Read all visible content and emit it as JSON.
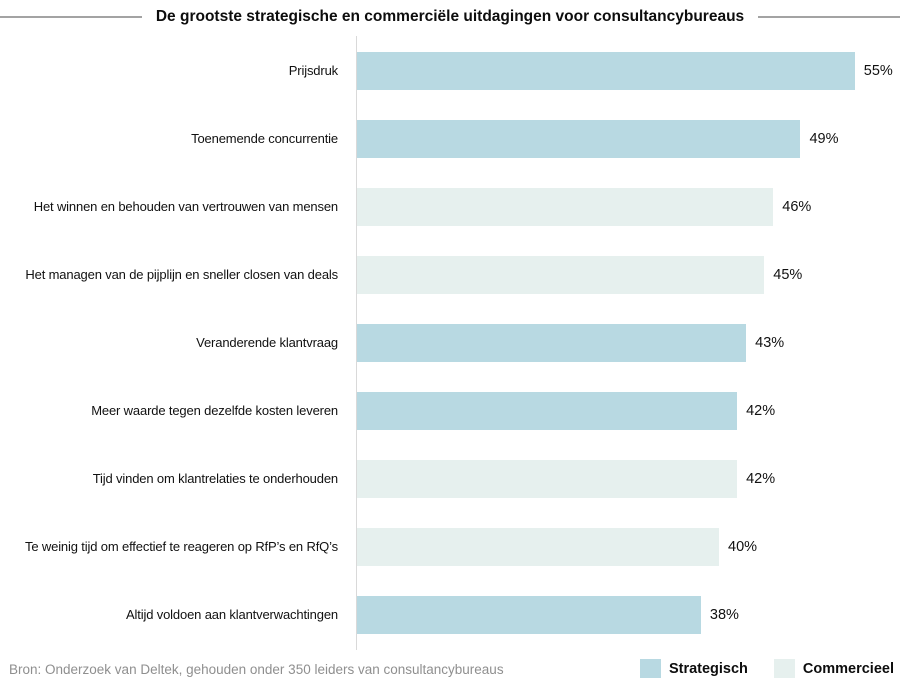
{
  "title": "De grootste strategische en commerciële uitdagingen voor consultancybureaus",
  "source": "Bron: Onderzoek van Deltek, gehouden onder 350 leiders van consultancybureaus",
  "legend": {
    "items": [
      {
        "label": "Strategisch",
        "color": "#b8d9e2"
      },
      {
        "label": "Commercieel",
        "color": "#e6f0ee"
      }
    ]
  },
  "colors": {
    "strategisch": "#b8d9e2",
    "commercieel": "#e6f0ee",
    "axis_line": "#d9d9d9",
    "title_rule": "#a3a3a3",
    "source_text": "#8f8f8f",
    "text": "#111111",
    "background": "#ffffff"
  },
  "chart_data": {
    "type": "bar",
    "orientation": "horizontal",
    "title": "De grootste strategische en commerciële uitdagingen voor consultancybureaus",
    "xlabel": "",
    "ylabel": "",
    "value_suffix": "%",
    "xlim": [
      0,
      60
    ],
    "grid": false,
    "legend_position": "bottom-right",
    "categories": [
      "Prijsdruk",
      "Toenemende concurrentie",
      "Het winnen en behouden van vertrouwen van mensen",
      "Het managen van de pijplijn en sneller closen van deals",
      "Veranderende klantvraag",
      "Meer waarde tegen dezelfde kosten leveren",
      "Tijd vinden om klantrelaties te onderhouden",
      "Te weinig tijd om effectief te reageren op RfP’s en RfQ’s",
      "Altijd voldoen aan klantverwachtingen"
    ],
    "values": [
      55,
      49,
      46,
      45,
      43,
      42,
      42,
      40,
      38
    ],
    "bar_series": [
      "Strategisch",
      "Strategisch",
      "Commercieel",
      "Commercieel",
      "Strategisch",
      "Strategisch",
      "Commercieel",
      "Commercieel",
      "Strategisch"
    ],
    "series": [
      {
        "name": "Strategisch",
        "color": "#b8d9e2",
        "values": [
          55,
          49,
          null,
          null,
          43,
          42,
          null,
          null,
          38
        ]
      },
      {
        "name": "Commercieel",
        "color": "#e6f0ee",
        "values": [
          null,
          null,
          46,
          45,
          null,
          null,
          42,
          40,
          null
        ]
      }
    ]
  }
}
